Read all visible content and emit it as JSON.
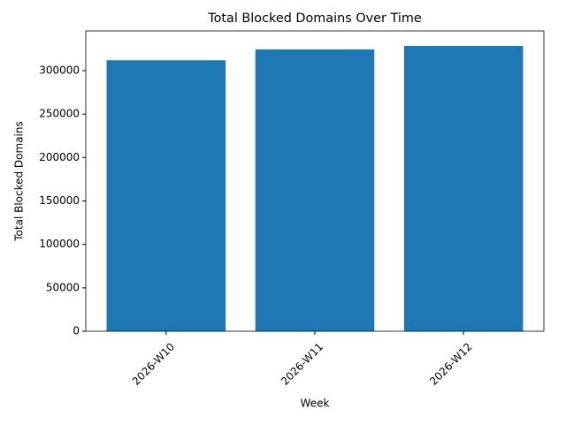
{
  "chart_data": {
    "type": "bar",
    "title": "Total Blocked Domains Over Time",
    "x_label": "Week",
    "y_label": "Total Blocked Domains",
    "categories": [
      "2026-W10",
      "2026-W11",
      "2026-W12"
    ],
    "values": [
      312000,
      324500,
      328500
    ],
    "color": "#1f77b4",
    "ylim": [
      0,
      345800
    ],
    "yticks": [
      0,
      50000,
      100000,
      150000,
      200000,
      250000,
      300000
    ]
  }
}
